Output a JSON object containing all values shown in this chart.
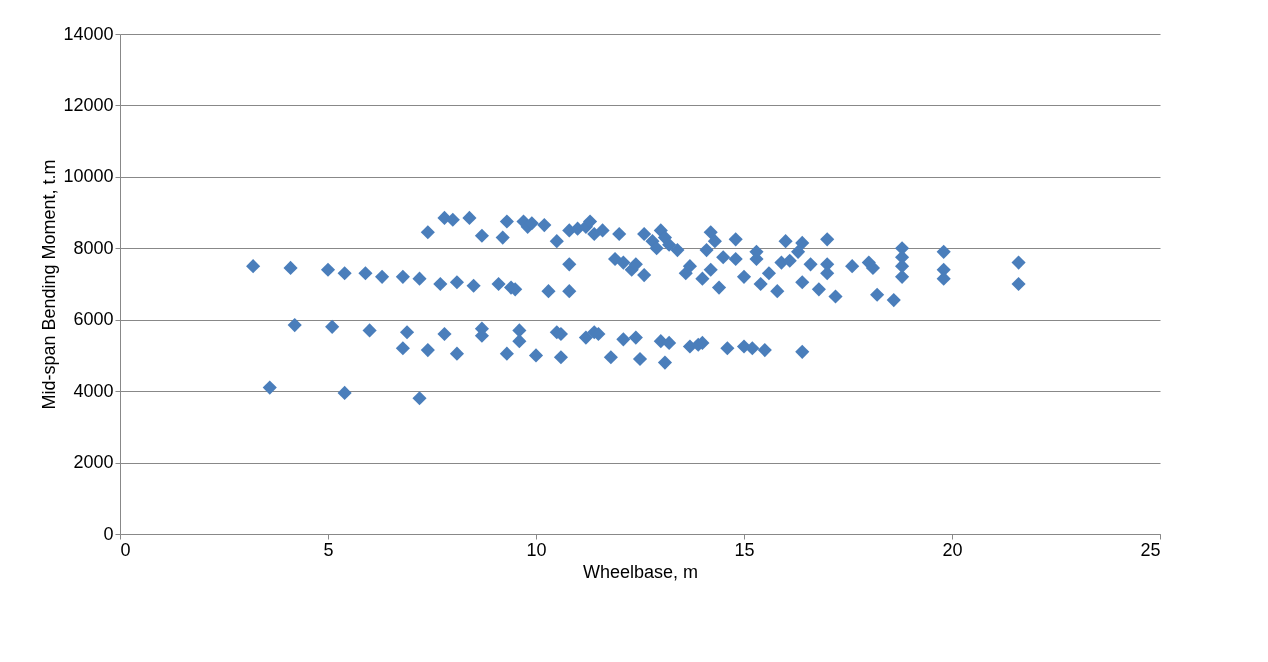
{
  "chart_data": {
    "type": "scatter",
    "xlabel": "Wheelbase, m",
    "ylabel": "Mid-span Bending Moment, t.m",
    "xlim": [
      0,
      25
    ],
    "xticks": [
      0,
      5,
      10,
      15,
      20,
      25
    ],
    "ylim": [
      0,
      14000
    ],
    "yticks": [
      0,
      2000,
      4000,
      6000,
      8000,
      10000,
      12000,
      14000
    ],
    "grid": "y",
    "marker": "diamond",
    "series": [
      {
        "color": "#4a7ebb",
        "x": [
          3.2,
          4.1,
          4.2,
          3.6,
          5,
          5.1,
          5.4,
          5.4,
          5.9,
          6,
          6.3,
          6.8,
          6.8,
          6.9,
          7.2,
          7.2,
          7.4,
          7.4,
          7.7,
          7.8,
          7.8,
          8,
          8.1,
          8.1,
          8.4,
          8.5,
          8.7,
          8.7,
          8.7,
          9.1,
          9.2,
          9.3,
          9.3,
          9.4,
          9.5,
          9.6,
          9.6,
          9.7,
          9.8,
          9.9,
          10,
          10.2,
          10.3,
          10.5,
          10.5,
          10.6,
          10.6,
          10.8,
          10.8,
          10.8,
          11,
          11.2,
          11.2,
          11.3,
          11.4,
          11.4,
          11.5,
          11.6,
          11.8,
          11.9,
          12,
          12.1,
          12.1,
          12.3,
          12.4,
          12.4,
          12.5,
          12.6,
          12.6,
          12.8,
          12.9,
          13,
          13,
          13.1,
          13.1,
          13.2,
          13.2,
          13.4,
          13.6,
          13.7,
          13.7,
          13.9,
          14,
          14,
          14.1,
          14.2,
          14.2,
          14.3,
          14.4,
          14.5,
          14.6,
          14.8,
          14.8,
          15,
          15,
          15.2,
          15.3,
          15.3,
          15.4,
          15.5,
          15.6,
          15.8,
          15.9,
          16,
          16.1,
          16.3,
          16.4,
          16.4,
          16.4,
          16.6,
          16.8,
          17,
          17,
          17,
          17.2,
          17.6,
          18,
          18.1,
          18.2,
          18.6,
          18.8,
          18.8,
          18.8,
          18.8,
          19.8,
          19.8,
          19.8,
          21.6,
          21.6
        ],
        "values": [
          7500,
          7450,
          5850,
          4100,
          7400,
          5800,
          3950,
          7300,
          7300,
          5700,
          7200,
          7200,
          5200,
          5650,
          7150,
          3800,
          5150,
          8450,
          7000,
          5600,
          8850,
          8800,
          7050,
          5050,
          8850,
          6950,
          8350,
          5750,
          5550,
          7000,
          8300,
          5050,
          8750,
          6900,
          6850,
          5700,
          5400,
          8750,
          8600,
          8700,
          5000,
          8650,
          6800,
          8200,
          5650,
          5600,
          4950,
          7550,
          6800,
          8500,
          8550,
          8600,
          5500,
          8750,
          8400,
          5650,
          5600,
          8500,
          4950,
          7700,
          8400,
          5450,
          7600,
          7400,
          5500,
          7550,
          4900,
          8400,
          7250,
          8200,
          8000,
          8500,
          5400,
          4800,
          8300,
          5350,
          8100,
          7950,
          7300,
          7500,
          5250,
          5300,
          7150,
          5350,
          7950,
          8450,
          7400,
          8200,
          6900,
          7750,
          5200,
          7700,
          8250,
          5250,
          7200,
          5200,
          7700,
          7900,
          7000,
          5150,
          7300,
          6800,
          7600,
          8200,
          7650,
          7900,
          7050,
          5100,
          8150,
          7550,
          6850,
          8250,
          7550,
          7300,
          6650,
          7500,
          7600,
          7450,
          6700,
          6550,
          8000,
          7750,
          7500,
          7200,
          7900,
          7400,
          7150,
          7600,
          7000
        ]
      }
    ]
  }
}
